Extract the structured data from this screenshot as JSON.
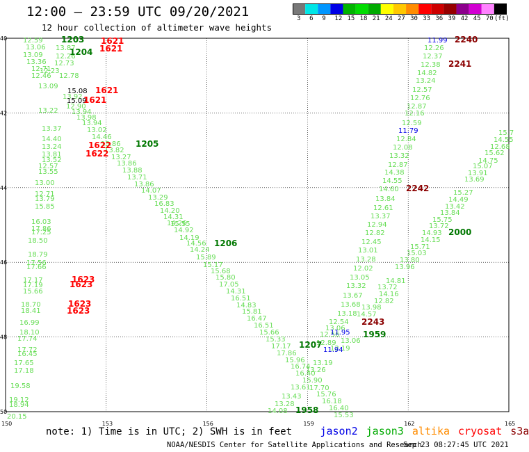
{
  "title": "12:00 – 23:59 UTC 09/20/2021",
  "subtitle": "12 hour collection of altimeter wave heights",
  "colorbar": {
    "labels": [
      "3",
      "6",
      "9",
      "12",
      "15",
      "18",
      "21",
      "24",
      "27",
      "30",
      "33",
      "36",
      "39",
      "42",
      "45",
      "70",
      "(ft)"
    ],
    "colors": [
      "#787878",
      "#00e6e6",
      "#0096ff",
      "#0000e6",
      "#00b400",
      "#00dc00",
      "#00aa00",
      "#ffff00",
      "#ffc800",
      "#ff8c00",
      "#ff0000",
      "#cd0000",
      "#960000",
      "#8c008c",
      "#d200d2",
      "#ff82ff",
      "#000000"
    ]
  },
  "axes": {
    "lon_min": 150,
    "lon_max": 165,
    "lat_min": 40,
    "lat_max": 50,
    "x_ticks": [
      "150",
      "153",
      "156",
      "159",
      "162",
      "165"
    ],
    "y_ticks": [
      "40",
      "42",
      "44",
      "46",
      "48",
      "50"
    ],
    "lat_values": [
      40,
      42,
      44,
      46,
      48,
      50
    ]
  },
  "track_color": "#66dd55",
  "heights": [
    {
      "t": "12.59",
      "x": 33,
      "y": 57
    },
    {
      "t": "13.06",
      "x": 37,
      "y": 67
    },
    {
      "t": "13.09",
      "x": 33,
      "y": 78
    },
    {
      "t": "13.36",
      "x": 38,
      "y": 88
    },
    {
      "t": "12.71",
      "x": 45,
      "y": 98
    },
    {
      "t": "12.46",
      "x": 45,
      "y": 108
    },
    {
      "t": "12.23",
      "x": 57,
      "y": 101
    },
    {
      "t": "13.09",
      "x": 55,
      "y": 123
    },
    {
      "t": "13.22",
      "x": 55,
      "y": 158
    },
    {
      "t": "13.37",
      "x": 60,
      "y": 184
    },
    {
      "t": "14.40",
      "x": 60,
      "y": 199
    },
    {
      "t": "13.24",
      "x": 60,
      "y": 210
    },
    {
      "t": "13.81",
      "x": 60,
      "y": 221
    },
    {
      "t": "13.52",
      "x": 60,
      "y": 229
    },
    {
      "t": "12.57",
      "x": 55,
      "y": 238
    },
    {
      "t": "13.55",
      "x": 55,
      "y": 246
    },
    {
      "t": "13.00",
      "x": 50,
      "y": 262
    },
    {
      "t": "12.71",
      "x": 50,
      "y": 278
    },
    {
      "t": "13.79",
      "x": 50,
      "y": 285
    },
    {
      "t": "15.85",
      "x": 50,
      "y": 296
    },
    {
      "t": "16.03",
      "x": 45,
      "y": 318
    },
    {
      "t": "17.86",
      "x": 45,
      "y": 328
    },
    {
      "t": "17.25",
      "x": 45,
      "y": 333
    },
    {
      "t": "18.50",
      "x": 40,
      "y": 345
    },
    {
      "t": "18.79",
      "x": 40,
      "y": 365
    },
    {
      "t": "17.56",
      "x": 38,
      "y": 377
    },
    {
      "t": "17.66",
      "x": 38,
      "y": 383
    },
    {
      "t": "17.17",
      "x": 33,
      "y": 402
    },
    {
      "t": "17.19",
      "x": 33,
      "y": 409
    },
    {
      "t": "15.66",
      "x": 33,
      "y": 418
    },
    {
      "t": "18.70",
      "x": 30,
      "y": 437
    },
    {
      "t": "18.41",
      "x": 30,
      "y": 446
    },
    {
      "t": "16.99",
      "x": 28,
      "y": 463
    },
    {
      "t": "18.10",
      "x": 28,
      "y": 477
    },
    {
      "t": "17.74",
      "x": 25,
      "y": 486
    },
    {
      "t": "17.72",
      "x": 25,
      "y": 502
    },
    {
      "t": "16.45",
      "x": 25,
      "y": 508
    },
    {
      "t": "17.65",
      "x": 20,
      "y": 521
    },
    {
      "t": "17.18",
      "x": 20,
      "y": 532
    },
    {
      "t": "19.58",
      "x": 15,
      "y": 554
    },
    {
      "t": "19.12",
      "x": 13,
      "y": 574
    },
    {
      "t": "18.94",
      "x": 13,
      "y": 581
    },
    {
      "t": "20.15",
      "x": 10,
      "y": 598
    },
    {
      "t": "13.87",
      "x": 80,
      "y": 68
    },
    {
      "t": "12.26",
      "x": 80,
      "y": 80
    },
    {
      "t": "12.73",
      "x": 78,
      "y": 90
    },
    {
      "t": "12.78",
      "x": 85,
      "y": 108
    },
    {
      "t": "13.92",
      "x": 90,
      "y": 138
    },
    {
      "t": "12.90",
      "x": 95,
      "y": 152
    },
    {
      "t": "13.94",
      "x": 103,
      "y": 160
    },
    {
      "t": "13.98",
      "x": 110,
      "y": 168
    },
    {
      "t": "13.94",
      "x": 118,
      "y": 176
    },
    {
      "t": "13.02",
      "x": 125,
      "y": 186
    },
    {
      "t": "14.46",
      "x": 132,
      "y": 196
    },
    {
      "t": "15.86",
      "x": 145,
      "y": 206
    },
    {
      "t": "13.82",
      "x": 150,
      "y": 215
    },
    {
      "t": "13.27",
      "x": 160,
      "y": 225
    },
    {
      "t": "13.86",
      "x": 168,
      "y": 234
    },
    {
      "t": "13.88",
      "x": 176,
      "y": 244
    },
    {
      "t": "13.71",
      "x": 183,
      "y": 254
    },
    {
      "t": "13.86",
      "x": 193,
      "y": 264
    },
    {
      "t": "14.07",
      "x": 203,
      "y": 273
    },
    {
      "t": "13.29",
      "x": 213,
      "y": 283
    },
    {
      "t": "16.83",
      "x": 222,
      "y": 292
    },
    {
      "t": "14.20",
      "x": 230,
      "y": 302
    },
    {
      "t": "14.31",
      "x": 235,
      "y": 311
    },
    {
      "t": "14.26",
      "x": 240,
      "y": 320
    },
    {
      "t": "15.55",
      "x": 245,
      "y": 321
    },
    {
      "t": "14.92",
      "x": 250,
      "y": 330
    },
    {
      "t": "14.19",
      "x": 258,
      "y": 341
    },
    {
      "t": "14.56",
      "x": 268,
      "y": 349
    },
    {
      "t": "14.24",
      "x": 273,
      "y": 358
    },
    {
      "t": "15.89",
      "x": 282,
      "y": 369
    },
    {
      "t": "15.17",
      "x": 292,
      "y": 380
    },
    {
      "t": "15.68",
      "x": 303,
      "y": 389
    },
    {
      "t": "15.80",
      "x": 310,
      "y": 398
    },
    {
      "t": "17.05",
      "x": 315,
      "y": 408
    },
    {
      "t": "14.31",
      "x": 325,
      "y": 418
    },
    {
      "t": "16.51",
      "x": 332,
      "y": 428
    },
    {
      "t": "14.83",
      "x": 340,
      "y": 438
    },
    {
      "t": "15.81",
      "x": 348,
      "y": 447
    },
    {
      "t": "16.47",
      "x": 355,
      "y": 457
    },
    {
      "t": "16.51",
      "x": 365,
      "y": 467
    },
    {
      "t": "15.66",
      "x": 373,
      "y": 477
    },
    {
      "t": "15.33",
      "x": 382,
      "y": 487
    },
    {
      "t": "17.17",
      "x": 390,
      "y": 497
    },
    {
      "t": "17.86",
      "x": 398,
      "y": 507
    },
    {
      "t": "15.96",
      "x": 410,
      "y": 517
    },
    {
      "t": "16.74",
      "x": 418,
      "y": 526
    },
    {
      "t": "16.40",
      "x": 425,
      "y": 536
    },
    {
      "t": "15.90",
      "x": 435,
      "y": 546
    },
    {
      "t": "17.70",
      "x": 445,
      "y": 557
    },
    {
      "t": "15.76",
      "x": 455,
      "y": 566
    },
    {
      "t": "16.18",
      "x": 463,
      "y": 576
    },
    {
      "t": "16.40",
      "x": 473,
      "y": 586
    },
    {
      "t": "15.53",
      "x": 480,
      "y": 596
    },
    {
      "t": "12.26",
      "x": 610,
      "y": 68
    },
    {
      "t": "12.37",
      "x": 608,
      "y": 80
    },
    {
      "t": "12.38",
      "x": 605,
      "y": 92
    },
    {
      "t": "14.82",
      "x": 600,
      "y": 104
    },
    {
      "t": "13.24",
      "x": 598,
      "y": 115
    },
    {
      "t": "12.57",
      "x": 593,
      "y": 128
    },
    {
      "t": "12.76",
      "x": 590,
      "y": 140
    },
    {
      "t": "12.87",
      "x": 585,
      "y": 152
    },
    {
      "t": "12.16",
      "x": 582,
      "y": 162
    },
    {
      "t": "12.59",
      "x": 578,
      "y": 176
    },
    {
      "t": "12.84",
      "x": 570,
      "y": 199
    },
    {
      "t": "12.08",
      "x": 565,
      "y": 211
    },
    {
      "t": "13.32",
      "x": 560,
      "y": 223
    },
    {
      "t": "12.87",
      "x": 558,
      "y": 236
    },
    {
      "t": "14.38",
      "x": 553,
      "y": 247
    },
    {
      "t": "14.55",
      "x": 550,
      "y": 259
    },
    {
      "t": "14.60",
      "x": 545,
      "y": 271
    },
    {
      "t": "13.84",
      "x": 540,
      "y": 285
    },
    {
      "t": "12.61",
      "x": 537,
      "y": 298
    },
    {
      "t": "13.37",
      "x": 533,
      "y": 310
    },
    {
      "t": "12.94",
      "x": 528,
      "y": 322
    },
    {
      "t": "12.82",
      "x": 525,
      "y": 334
    },
    {
      "t": "12.45",
      "x": 520,
      "y": 347
    },
    {
      "t": "13.01",
      "x": 515,
      "y": 359
    },
    {
      "t": "13.28",
      "x": 512,
      "y": 372
    },
    {
      "t": "12.02",
      "x": 508,
      "y": 385
    },
    {
      "t": "13.05",
      "x": 503,
      "y": 398
    },
    {
      "t": "13.32",
      "x": 498,
      "y": 410
    },
    {
      "t": "13.67",
      "x": 493,
      "y": 424
    },
    {
      "t": "13.68",
      "x": 490,
      "y": 437
    },
    {
      "t": "13.18",
      "x": 485,
      "y": 450
    },
    {
      "t": "12.54",
      "x": 473,
      "y": 462
    },
    {
      "t": "13.06",
      "x": 468,
      "y": 471
    },
    {
      "t": "12.56",
      "x": 460,
      "y": 480
    },
    {
      "t": "12.89",
      "x": 455,
      "y": 492
    },
    {
      "t": "13.19",
      "x": 450,
      "y": 521
    },
    {
      "t": "13.26",
      "x": 440,
      "y": 531
    },
    {
      "t": "13.61",
      "x": 418,
      "y": 556
    },
    {
      "t": "13.43",
      "x": 405,
      "y": 569
    },
    {
      "t": "13.28",
      "x": 395,
      "y": 580
    },
    {
      "t": "14.08",
      "x": 385,
      "y": 590
    },
    {
      "t": "12.68",
      "x": 705,
      "y": 210
    },
    {
      "t": "15.7",
      "x": 717,
      "y": 190
    },
    {
      "t": "14.55",
      "x": 710,
      "y": 200
    },
    {
      "t": "15.62",
      "x": 697,
      "y": 219
    },
    {
      "t": "14.75",
      "x": 688,
      "y": 230
    },
    {
      "t": "15.07",
      "x": 680,
      "y": 238
    },
    {
      "t": "13.91",
      "x": 673,
      "y": 248
    },
    {
      "t": "13.69",
      "x": 668,
      "y": 257
    },
    {
      "t": "15.27",
      "x": 652,
      "y": 276
    },
    {
      "t": "14.49",
      "x": 645,
      "y": 286
    },
    {
      "t": "13.42",
      "x": 640,
      "y": 296
    },
    {
      "t": "13.84",
      "x": 633,
      "y": 305
    },
    {
      "t": "15.75",
      "x": 622,
      "y": 315
    },
    {
      "t": "13.72",
      "x": 617,
      "y": 324
    },
    {
      "t": "14.93",
      "x": 607,
      "y": 334
    },
    {
      "t": "14.15",
      "x": 605,
      "y": 344
    },
    {
      "t": "15.71",
      "x": 590,
      "y": 354
    },
    {
      "t": "15.03",
      "x": 585,
      "y": 363
    },
    {
      "t": "13.80",
      "x": 575,
      "y": 373
    },
    {
      "t": "13.96",
      "x": 568,
      "y": 383
    },
    {
      "t": "14.81",
      "x": 555,
      "y": 403
    },
    {
      "t": "13.72",
      "x": 543,
      "y": 412
    },
    {
      "t": "14.16",
      "x": 545,
      "y": 422
    },
    {
      "t": "12.82",
      "x": 538,
      "y": 432
    },
    {
      "t": "13.98",
      "x": 520,
      "y": 441
    },
    {
      "t": "14.57",
      "x": 513,
      "y": 451
    },
    {
      "t": "13.06",
      "x": 490,
      "y": 489
    },
    {
      "t": "12.19",
      "x": 475,
      "y": 500
    }
  ],
  "highlight_heights": [
    {
      "t": "11.99",
      "x": 615,
      "y": 57,
      "c": "#0000e6"
    },
    {
      "t": "11.79",
      "x": 573,
      "y": 187,
      "c": "#0000e6"
    },
    {
      "t": "11.95",
      "x": 475,
      "y": 477,
      "c": "#0000e6"
    },
    {
      "t": "11.94",
      "x": 465,
      "y": 502,
      "c": "#0000e6"
    }
  ],
  "times": [
    {
      "t": "1203",
      "x": 88,
      "y": 57,
      "c": "#007700"
    },
    {
      "t": "1204",
      "x": 100,
      "y": 75,
      "c": "#007700"
    },
    {
      "t": "1205",
      "x": 195,
      "y": 207,
      "c": "#007700"
    },
    {
      "t": "1206",
      "x": 308,
      "y": 350,
      "c": "#007700"
    },
    {
      "t": "1207",
      "x": 430,
      "y": 496,
      "c": "#007700"
    },
    {
      "t": "1958",
      "x": 425,
      "y": 590,
      "c": "#007700"
    },
    {
      "t": "1959",
      "x": 522,
      "y": 481,
      "c": "#007700"
    },
    {
      "t": "2000",
      "x": 645,
      "y": 334,
      "c": "#007700"
    },
    {
      "t": "1621",
      "x": 145,
      "y": 59,
      "c": "#ff0000"
    },
    {
      "t": "1621",
      "x": 143,
      "y": 70,
      "c": "#ff0000"
    },
    {
      "t": "1621",
      "x": 137,
      "y": 130,
      "c": "#ff0000"
    },
    {
      "t": "1621",
      "x": 120,
      "y": 144,
      "c": "#ff0000"
    },
    {
      "t": "1622",
      "x": 127,
      "y": 209,
      "c": "#ff0000"
    },
    {
      "t": "1622",
      "x": 123,
      "y": 221,
      "c": "#ff0000"
    },
    {
      "t": "1623",
      "x": 103,
      "y": 402,
      "c": "#ff0000"
    },
    {
      "t": "1623",
      "x": 100,
      "y": 409,
      "c": "#ff0000"
    },
    {
      "t": "1623",
      "x": 98,
      "y": 437,
      "c": "#ff0000"
    },
    {
      "t": "1623",
      "x": 96,
      "y": 447,
      "c": "#ff0000"
    },
    {
      "t": "2240",
      "x": 654,
      "y": 57,
      "c": "#8b0000"
    },
    {
      "t": "2241",
      "x": 645,
      "y": 92,
      "c": "#8b0000"
    },
    {
      "t": "2242",
      "x": 584,
      "y": 271,
      "c": "#8b0000"
    },
    {
      "t": "2243",
      "x": 520,
      "y": 463,
      "c": "#8b0000"
    }
  ],
  "black_labels": [
    {
      "t": "15.08",
      "x": 97,
      "y": 130
    },
    {
      "t": "15.09",
      "x": 96,
      "y": 144
    }
  ],
  "legend": {
    "note": "note: 1) Time is in UTC; 2) SWH is in feet",
    "items": [
      {
        "label": "jason2",
        "color": "#0000e6"
      },
      {
        "label": "jason3",
        "color": "#00aa00"
      },
      {
        "label": "altika",
        "color": "#ff8c00"
      },
      {
        "label": "cryosat",
        "color": "#ff0000"
      },
      {
        "label": "s3a",
        "color": "#8b0000"
      }
    ]
  },
  "footer": {
    "credit": "NOAA/NESDIS Center for Satellite Applications and Research",
    "timestamp": "Sep 23 08:27:45 UTC 2021"
  }
}
